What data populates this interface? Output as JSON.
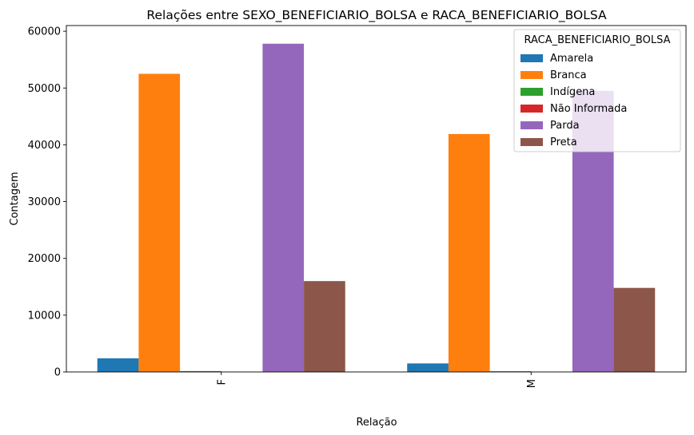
{
  "chart_data": {
    "type": "bar",
    "title": "Relações entre SEXO_BENEFICIARIO_BOLSA e RACA_BENEFICIARIO_BOLSA",
    "xlabel": "Relação",
    "ylabel": "Contagem",
    "categories": [
      "F",
      "M"
    ],
    "ylim": [
      0,
      61000
    ],
    "yticks": [
      0,
      10000,
      20000,
      30000,
      40000,
      50000,
      60000
    ],
    "ytick_labels": [
      "0",
      "10000",
      "20000",
      "30000",
      "40000",
      "50000",
      "60000"
    ],
    "legend": {
      "title": "RACA_BENEFICIARIO_BOLSA",
      "placement": "top-right"
    },
    "series": [
      {
        "name": "Amarela",
        "color": "#1f77b4",
        "values": [
          2400,
          1500
        ]
      },
      {
        "name": "Branca",
        "color": "#ff7f0e",
        "values": [
          52500,
          41900
        ]
      },
      {
        "name": "Indígena",
        "color": "#2ca02c",
        "values": [
          150,
          120
        ]
      },
      {
        "name": "Não Informada",
        "color": "#d62728",
        "values": [
          10,
          10
        ]
      },
      {
        "name": "Parda",
        "color": "#9467bd",
        "values": [
          57800,
          49500
        ]
      },
      {
        "name": "Preta",
        "color": "#8c564b",
        "values": [
          16000,
          14800
        ]
      }
    ]
  }
}
